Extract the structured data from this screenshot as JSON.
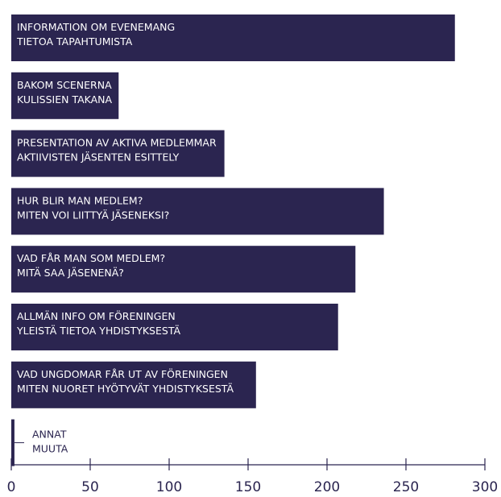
{
  "chart_data": {
    "type": "bar",
    "orientation": "horizontal",
    "categories": [
      [
        "INFORMATION OM EVENEMANG",
        "TIETOA TAPAHTUMISTA"
      ],
      [
        "BAKOM SCENERNA",
        "KULISSIEN TAKANA"
      ],
      [
        "PRESENTATION AV AKTIVA MEDLEMMAR",
        "AKTIIVISTEN JÄSENTEN ESITTELY"
      ],
      [
        "HUR BLIR MAN MEDLEM?",
        "MITEN VOI LIITTYÄ JÄSENEKSI?"
      ],
      [
        "VAD FÅR MAN SOM MEDLEM?",
        "MITÄ SAA JÄSENENÄ?"
      ],
      [
        "ALLMÄN INFO OM FÖRENINGEN",
        "YLEISTÄ TIETOA YHDISTYKSESTÄ"
      ],
      [
        "VAD UNGDOMAR FÅR UT AV FÖRENINGEN",
        "MITEN NUORET HYÖTYVÄT YHDISTYKSESTÄ"
      ],
      [
        "ANNAT",
        "MUUTA"
      ]
    ],
    "values": [
      281,
      68,
      135,
      236,
      218,
      207,
      155,
      2
    ],
    "xlim": [
      0,
      300
    ],
    "xticks": [
      0,
      50,
      100,
      150,
      200,
      250,
      300
    ],
    "grid": false,
    "colors": {
      "bar": "#2b2550",
      "text_inside": "#ffffff",
      "axis": "#2b2550"
    }
  }
}
